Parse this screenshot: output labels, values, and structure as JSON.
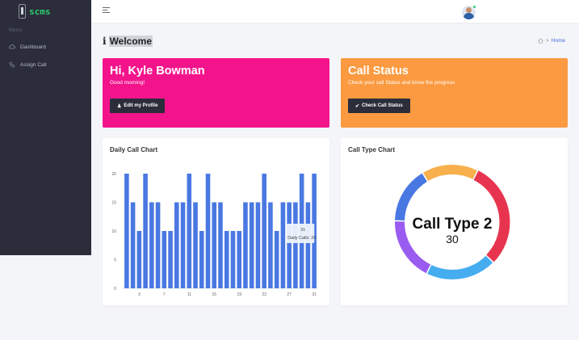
{
  "brand": {
    "name": "scms"
  },
  "sidebar": {
    "heading": "Menu",
    "items": [
      {
        "label": "Dashboard",
        "icon": "cloud-icon"
      },
      {
        "label": "Assign Call",
        "icon": "phone-icon"
      }
    ]
  },
  "header": {
    "title": "Welcome"
  },
  "breadcrumb": {
    "home": "Home"
  },
  "cards": {
    "profile": {
      "title": "Hi, Kyle Bowman",
      "subtitle": "Good morning!",
      "button": "Edit my Profile",
      "color": "#f3148c"
    },
    "status": {
      "title": "Call Status",
      "subtitle": "Check your call Status and know the progress",
      "button": "Check Call Status",
      "color": "#fb9a40"
    }
  },
  "charts": {
    "daily_title": "Daily Call Chart",
    "type_title": "Call Type Chart"
  },
  "chart_data": [
    {
      "type": "bar",
      "x": [
        1,
        2,
        3,
        4,
        5,
        6,
        7,
        8,
        9,
        10,
        11,
        12,
        13,
        14,
        15,
        16,
        17,
        18,
        19,
        20,
        21,
        22,
        23,
        24,
        25,
        26,
        27,
        28,
        29,
        30,
        31
      ],
      "values": [
        20,
        15,
        10,
        20,
        15,
        15,
        10,
        10,
        15,
        15,
        20,
        15,
        10,
        20,
        15,
        15,
        10,
        10,
        10,
        15,
        15,
        15,
        20,
        15,
        10,
        15,
        15,
        15,
        20,
        15,
        20
      ],
      "ylim": [
        0,
        20
      ],
      "yticks": [
        "0",
        "5",
        "10",
        "15",
        "20"
      ],
      "xticks": [
        "3",
        "7",
        "11",
        "15",
        "19",
        "23",
        "27",
        "31"
      ],
      "tooltip": {
        "title": "31",
        "label": "Daily Calls",
        "value": "20"
      },
      "color": "#4a78e2"
    },
    {
      "type": "pie",
      "center_label": "Call Type 2",
      "center_value": "30",
      "slices": [
        {
          "value": 16,
          "color": "#f8b04c"
        },
        {
          "value": 30,
          "color": "#e8354f"
        },
        {
          "value": 20,
          "color": "#45adef"
        },
        {
          "value": 18,
          "color": "#9a5cf0"
        },
        {
          "value": 16,
          "color": "#4a78e2"
        }
      ]
    }
  ]
}
